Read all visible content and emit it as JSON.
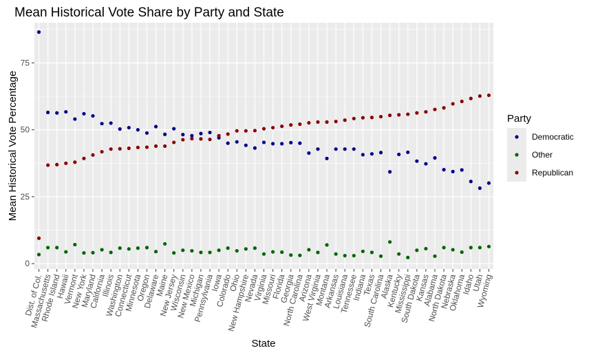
{
  "chart_data": {
    "type": "scatter",
    "title": "Mean Historical Vote Share by Party and State",
    "xlabel": "State",
    "ylabel": "Mean Historical Vote Percentage",
    "ylim": [
      -2,
      90
    ],
    "yticks": [
      0,
      25,
      50,
      75
    ],
    "grid": true,
    "legend_position": "right",
    "legend_title": "Party",
    "categories": [
      "Dist. of Col.",
      "Massachusetts",
      "Rhode Island",
      "Hawaii",
      "Vermont",
      "New York",
      "Maryland",
      "California",
      "Illinois",
      "Washington",
      "Connecticut",
      "Minnesota",
      "Oregon",
      "Delaware",
      "Maine",
      "New Jersey",
      "Wisconsin",
      "New Mexico",
      "Michigan",
      "Pennsylvania",
      "Iowa",
      "Colorado",
      "Ohio",
      "New Hampshire",
      "Nevada",
      "Virginia",
      "Missouri",
      "Florida",
      "Georgia",
      "North Carolina",
      "Arizona",
      "West Virginia",
      "Montana",
      "Arkansas",
      "Louisiana",
      "Tennessee",
      "Indiana",
      "Texas",
      "South Carolina",
      "Alaska",
      "Kentucky",
      "Mississippi",
      "South Dakota",
      "Kansas",
      "Alabama",
      "North Dakota",
      "Nebraska",
      "Oklahoma",
      "Idaho",
      "Utah",
      "Wyoming"
    ],
    "series": [
      {
        "name": "Democratic",
        "color": "#00008b",
        "values": [
          86.5,
          56.5,
          56.3,
          56.7,
          54.0,
          56.0,
          55.2,
          52.3,
          52.5,
          50.3,
          50.8,
          50.0,
          48.8,
          51.2,
          48.3,
          50.4,
          48.2,
          47.8,
          48.6,
          49.0,
          47.0,
          45.0,
          45.5,
          44.2,
          43.2,
          45.3,
          44.8,
          44.8,
          45.2,
          45.0,
          41.3,
          42.8,
          39.3,
          42.8,
          42.8,
          42.8,
          40.7,
          41.0,
          41.5,
          34.3,
          40.8,
          41.6,
          38.3,
          37.3,
          39.5,
          35.1,
          34.4,
          35.0,
          30.7,
          28.2,
          30.1
        ]
      },
      {
        "name": "Other",
        "color": "#006400",
        "values": [
          3.4,
          6.0,
          6.0,
          4.4,
          7.1,
          4.0,
          4.1,
          5.2,
          4.2,
          5.8,
          5.5,
          5.8,
          6.0,
          4.5,
          7.4,
          4.0,
          5.0,
          4.8,
          4.2,
          4.2,
          5.0,
          5.8,
          4.8,
          5.5,
          5.8,
          3.6,
          4.4,
          4.3,
          3.2,
          3.1,
          5.2,
          4.2,
          7.0,
          3.6,
          3.0,
          3.0,
          4.6,
          4.2,
          2.8,
          8.1,
          3.6,
          2.3,
          5.0,
          5.6,
          2.8,
          6.0,
          5.2,
          4.3,
          6.0,
          6.0,
          6.4
        ]
      },
      {
        "name": "Republican",
        "color": "#8b0000",
        "values": [
          9.5,
          36.8,
          37.0,
          37.5,
          37.9,
          39.3,
          40.6,
          41.8,
          42.8,
          42.9,
          43.1,
          43.4,
          43.5,
          43.9,
          43.9,
          45.3,
          46.3,
          46.7,
          46.6,
          46.4,
          47.8,
          48.4,
          49.6,
          49.6,
          49.7,
          50.4,
          50.8,
          51.3,
          51.8,
          52.1,
          52.6,
          52.9,
          52.9,
          53.1,
          53.6,
          54.2,
          54.5,
          54.6,
          54.9,
          55.4,
          55.6,
          55.8,
          56.3,
          56.7,
          57.6,
          58.2,
          59.7,
          60.6,
          61.7,
          62.6,
          62.9
        ]
      }
    ]
  }
}
